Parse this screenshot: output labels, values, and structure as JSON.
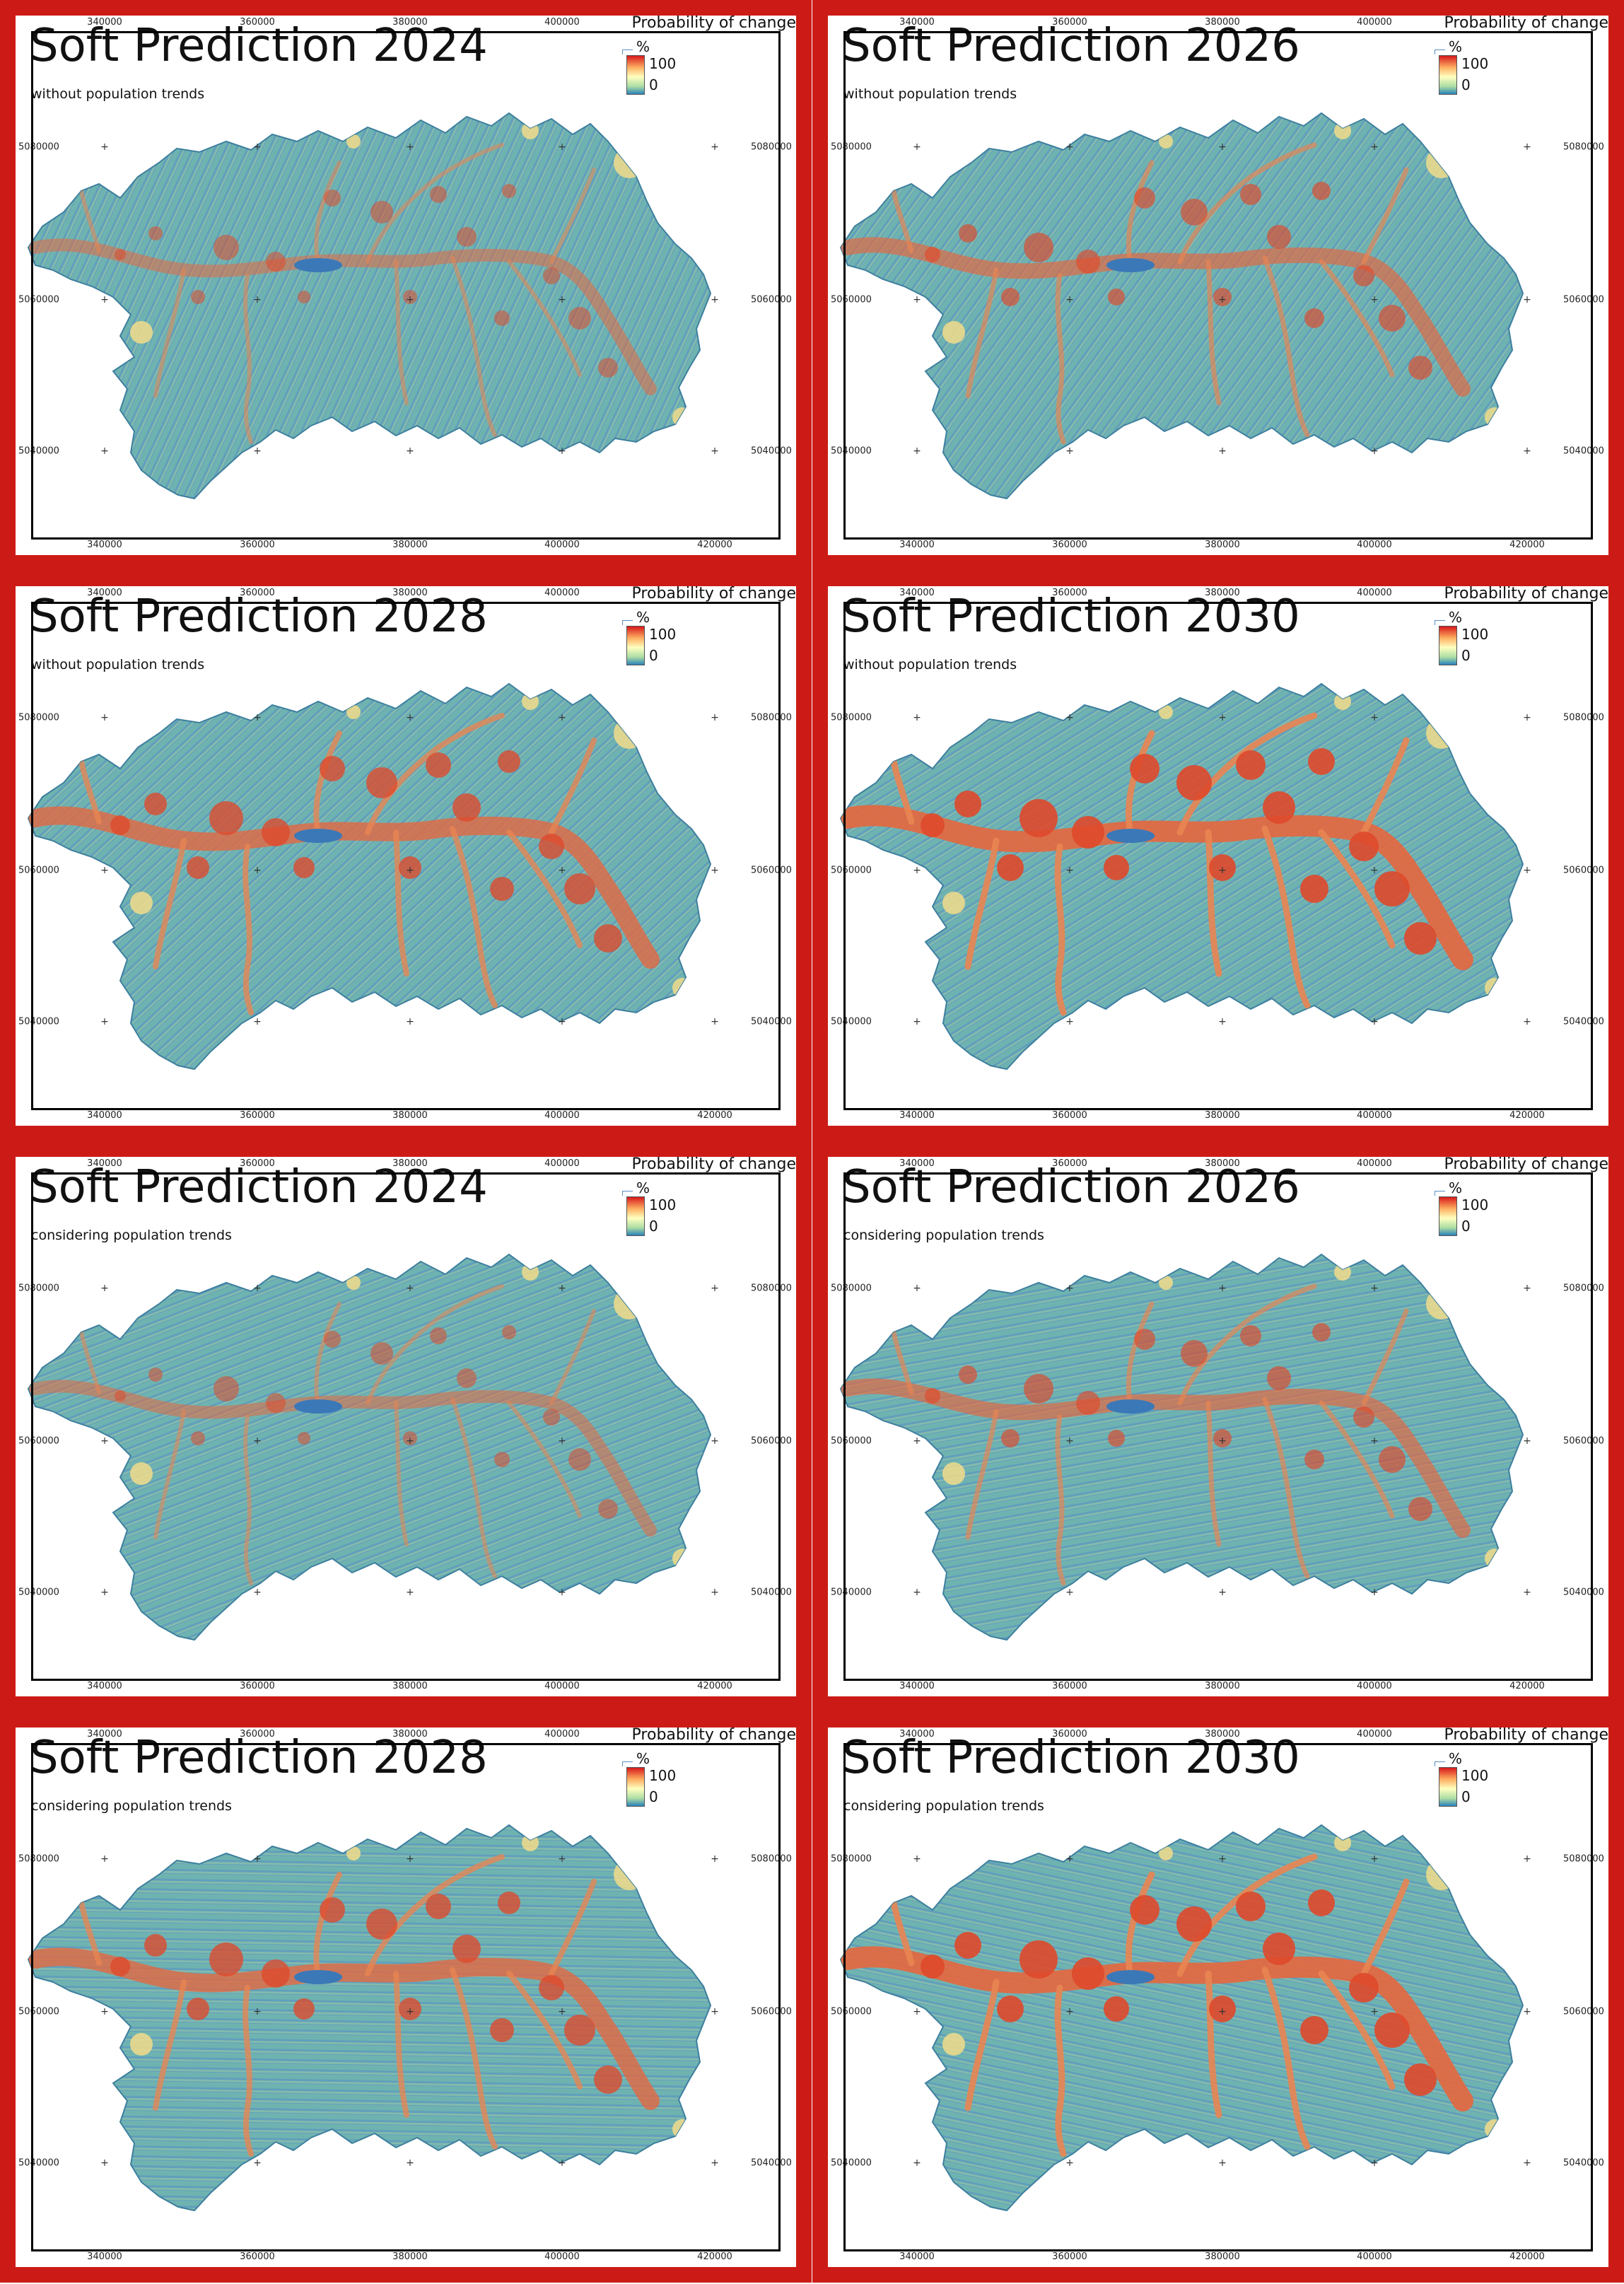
{
  "panels": [
    {
      "title": "Soft Prediction 2024",
      "subtitle": "without population trends"
    },
    {
      "title": "Soft Prediction 2026",
      "subtitle": "without population trends"
    },
    {
      "title": "Soft Prediction 2028",
      "subtitle": "without population trends"
    },
    {
      "title": "Soft Prediction 2030",
      "subtitle": "without population trends"
    },
    {
      "title": "Soft Prediction 2024",
      "subtitle": "considering population trends"
    },
    {
      "title": "Soft Prediction 2026",
      "subtitle": "considering population trends"
    },
    {
      "title": "Soft Prediction 2028",
      "subtitle": "considering population trends"
    },
    {
      "title": "Soft Prediction 2030",
      "subtitle": "considering population trends"
    }
  ],
  "legend": {
    "title": "Probability of change",
    "unit": "%",
    "max_label": "100",
    "min_label": "0",
    "colors": [
      "#d7191c",
      "#fdae61",
      "#ffffbf",
      "#abdda4",
      "#2b83ba"
    ]
  },
  "axes": {
    "x_ticks": [
      "340000",
      "360000",
      "380000",
      "400000",
      "420000"
    ],
    "y_ticks": [
      "5080000",
      "5060000",
      "5040000"
    ]
  },
  "colors": {
    "frame_red": "#cc1b16",
    "frame_black": "#000000",
    "water_blue": "#3b78b8"
  }
}
